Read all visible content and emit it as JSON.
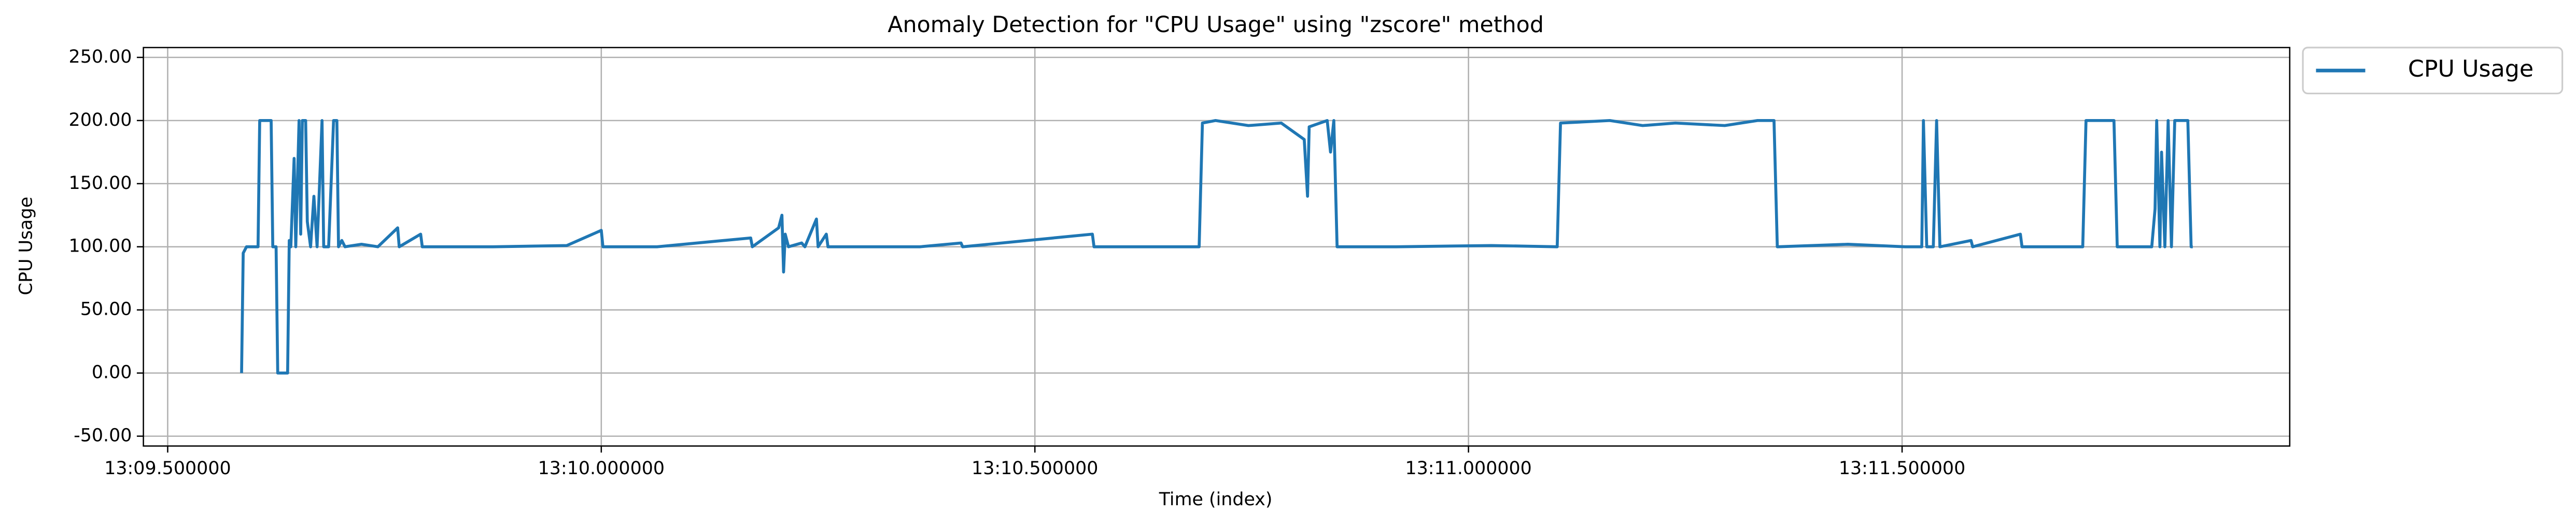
{
  "chart_data": {
    "type": "line",
    "title": "Anomaly Detection for \"CPU Usage\" using \"zscore\" method",
    "xlabel": "Time (index)",
    "ylabel": "CPU Usage",
    "grid": true,
    "legend": "outside upper right",
    "xlim": [
      789.472,
      791.947
    ],
    "ylim": [
      -57.8,
      257.8
    ],
    "xticks": [
      {
        "value": 789.5,
        "label": "13:09.500000"
      },
      {
        "value": 790.0,
        "label": "13:10.000000"
      },
      {
        "value": 790.5,
        "label": "13:10.500000"
      },
      {
        "value": 791.0,
        "label": "13:11.000000"
      },
      {
        "value": 791.5,
        "label": "13:11.500000"
      }
    ],
    "yticks": [
      {
        "value": -50,
        "label": "-50.00"
      },
      {
        "value": 0,
        "label": "0.00"
      },
      {
        "value": 50,
        "label": "50.00"
      },
      {
        "value": 100,
        "label": "100.00"
      },
      {
        "value": 150,
        "label": "150.00"
      },
      {
        "value": 200,
        "label": "200.00"
      },
      {
        "value": 250,
        "label": "250.00"
      }
    ],
    "x": [
      789.5852,
      789.5871,
      789.5909,
      789.6004,
      789.6042,
      789.6061,
      789.6193,
      789.6212,
      789.625,
      789.6269,
      789.6383,
      789.6402,
      789.642,
      789.6458,
      789.6477,
      789.6515,
      789.6534,
      789.6553,
      789.6591,
      789.661,
      789.6648,
      789.6686,
      789.6723,
      789.678,
      789.6799,
      789.6856,
      789.6913,
      789.6951,
      789.697,
      789.7008,
      789.7045,
      789.7235,
      789.7424,
      789.7652,
      789.767,
      789.7917,
      789.7936,
      789.875,
      789.9602,
      790.0,
      790.0019,
      790.0644,
      790.1723,
      790.1742,
      790.2045,
      790.2083,
      790.2102,
      790.2121,
      790.2159,
      790.2311,
      790.2348,
      790.2481,
      790.25,
      790.2595,
      790.2614,
      790.3674,
      790.4148,
      790.4167,
      790.5663,
      790.5682,
      790.6326,
      790.6894,
      790.6932,
      790.7083,
      790.7462,
      790.7841,
      790.8106,
      790.8144,
      790.8163,
      790.8371,
      790.8409,
      790.8447,
      790.8485,
      790.9167,
      791.0265,
      791.1023,
      791.1061,
      791.1629,
      791.2008,
      791.2386,
      791.2955,
      791.3333,
      791.3523,
      791.3561,
      791.4375,
      791.5038,
      791.5227,
      791.5246,
      791.5284,
      791.536,
      791.5398,
      791.5436,
      791.5795,
      791.5814,
      791.6364,
      791.6383,
      791.7083,
      791.7121,
      791.7443,
      791.7481,
      791.7879,
      791.7917,
      791.7936,
      791.7973,
      791.7992,
      791.803,
      791.8068,
      791.8106,
      791.8144,
      791.8295,
      791.8333,
      791.8352
    ],
    "series": [
      {
        "name": "CPU Usage",
        "color": "#1f77b4",
        "values": [
          0,
          95,
          100,
          100,
          100,
          200,
          200,
          100,
          100,
          0,
          0,
          105,
          100,
          170,
          100,
          200,
          110,
          200,
          200,
          120,
          100,
          140,
          100,
          200,
          100,
          100,
          200,
          200,
          100,
          105,
          100,
          102,
          100,
          115,
          100,
          110,
          100,
          100,
          101,
          113,
          100,
          100,
          107,
          100,
          115,
          125,
          80,
          110,
          100,
          103,
          100,
          122,
          100,
          110,
          100,
          100,
          103,
          100,
          110,
          100,
          100,
          100,
          198,
          200,
          196,
          198,
          185,
          140,
          195,
          200,
          175,
          200,
          100,
          100,
          101,
          100,
          198,
          200,
          196,
          198,
          196,
          200,
          200,
          100,
          102,
          100,
          100,
          200,
          100,
          100,
          200,
          100,
          105,
          100,
          110,
          100,
          100,
          200,
          200,
          100,
          100,
          130,
          200,
          100,
          175,
          100,
          200,
          100,
          200,
          200,
          100,
          100
        ]
      }
    ]
  }
}
